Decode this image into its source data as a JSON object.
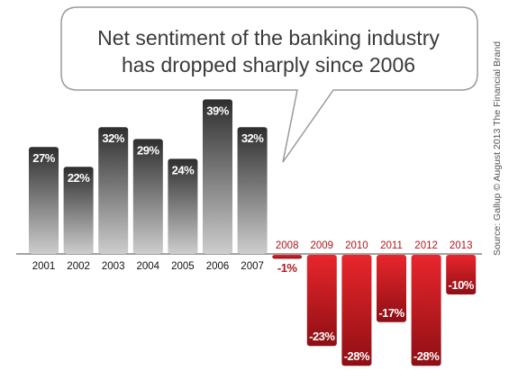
{
  "callout": {
    "line1": "Net sentiment of the banking industry",
    "line2": "has dropped sharply since 2006"
  },
  "source_note": "Source: Gallup © August 2013 The Financial Brand",
  "colors": {
    "positive_dark": "#2e2e2e",
    "positive_light": "#c8c8c8",
    "negative_light": "#e8262c",
    "negative_dark": "#8e0f14",
    "negative_text": "#b0171c"
  },
  "chart_data": {
    "type": "bar",
    "title": "",
    "xlabel": "",
    "ylabel": "",
    "categories": [
      "2001",
      "2002",
      "2003",
      "2004",
      "2005",
      "2006",
      "2007",
      "2008",
      "2009",
      "2010",
      "2011",
      "2012",
      "2013"
    ],
    "values": [
      27,
      22,
      32,
      29,
      24,
      39,
      32,
      -1,
      -23,
      -28,
      -17,
      -28,
      -10
    ],
    "value_labels": [
      "27%",
      "22%",
      "32%",
      "29%",
      "24%",
      "39%",
      "32%",
      "-1%",
      "-23%",
      "-28%",
      "-17%",
      "-28%",
      "-10%"
    ],
    "ylim": [
      -30,
      45
    ],
    "grid": false,
    "legend": "none"
  }
}
